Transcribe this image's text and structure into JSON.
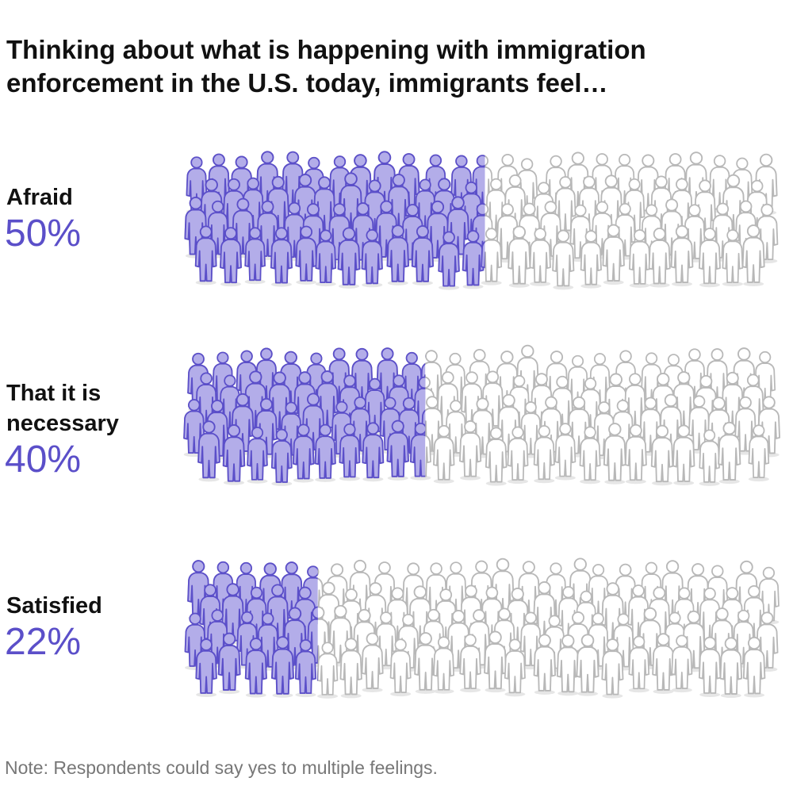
{
  "chart_data": {
    "type": "pictogram",
    "title": "Thinking about what is happening with immigration enforcement in the U.S. today, immigrants feel…",
    "categories": [
      "Afraid",
      "That it is necessary",
      "Satisfied"
    ],
    "values": [
      50,
      40,
      22
    ],
    "value_labels": [
      "50%",
      "40%",
      "22%"
    ],
    "color": "#b3ade9",
    "note": "Note: Respondents could say yes to multiple feelings."
  }
}
